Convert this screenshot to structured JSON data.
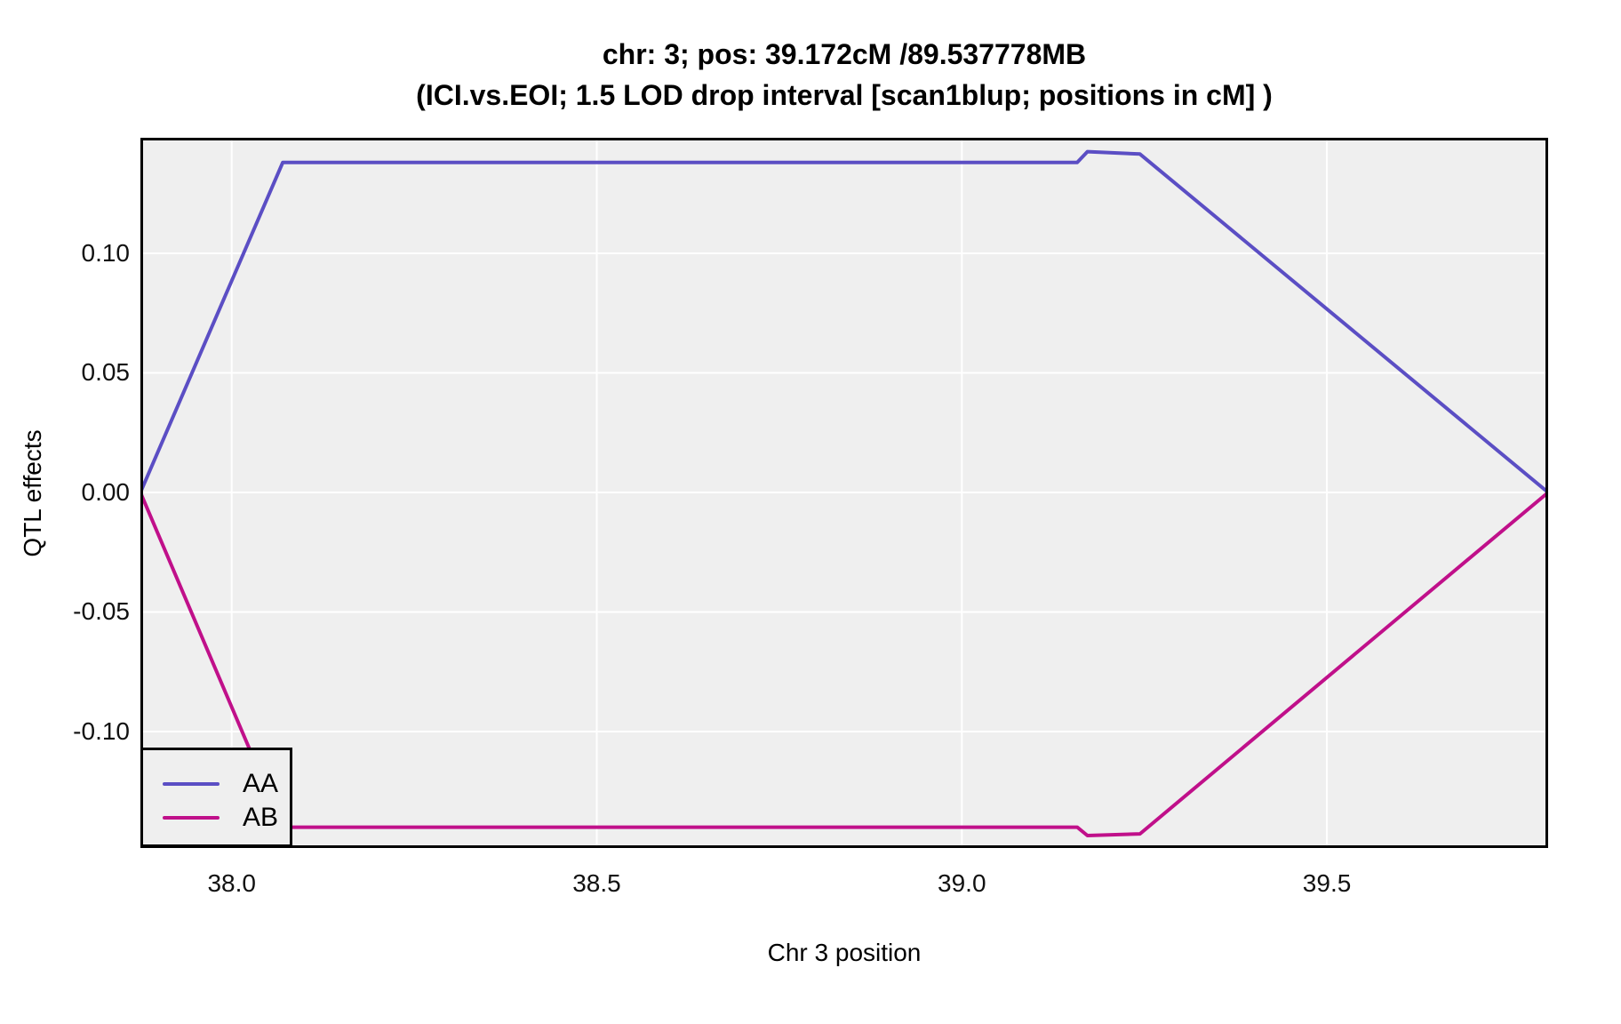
{
  "chart_data": {
    "type": "line",
    "title_lines": [
      "chr: 3; pos: 39.172cM /89.537778MB",
      "(ICI.vs.EOI; 1.5 LOD drop interval [scan1blup; positions in cM] )"
    ],
    "xlabel": "Chr 3 position",
    "ylabel": "QTL effects",
    "xlim": [
      37.875,
      39.803
    ],
    "ylim": [
      -0.1487,
      0.1483
    ],
    "x_ticks": [
      {
        "value": 38.0,
        "label": "38.0"
      },
      {
        "value": 38.5,
        "label": "38.5"
      },
      {
        "value": 39.0,
        "label": "39.0"
      },
      {
        "value": 39.5,
        "label": "39.5"
      }
    ],
    "y_ticks": [
      {
        "value": 0.1,
        "label": "0.10"
      },
      {
        "value": 0.05,
        "label": "0.05"
      },
      {
        "value": 0.0,
        "label": "0.00"
      },
      {
        "value": -0.05,
        "label": "-0.05"
      },
      {
        "value": -0.1,
        "label": "-0.10"
      }
    ],
    "grid": "major-only",
    "legend_position": "bottom-left",
    "peak": {
      "chr": "3",
      "pos_cM": 39.172,
      "pos_MB": 89.537778
    },
    "series": [
      {
        "name": "AA",
        "color": "#5B4EC4",
        "points": [
          [
            37.875,
            0.0
          ],
          [
            38.07,
            0.138
          ],
          [
            39.158,
            0.138
          ],
          [
            39.172,
            0.1425
          ],
          [
            39.244,
            0.1415
          ],
          [
            39.803,
            0.0
          ]
        ]
      },
      {
        "name": "AB",
        "color": "#C0108A",
        "points": [
          [
            37.875,
            0.0
          ],
          [
            38.07,
            -0.14
          ],
          [
            39.158,
            -0.14
          ],
          [
            39.172,
            -0.1435
          ],
          [
            39.244,
            -0.1428
          ],
          [
            39.803,
            0.0
          ]
        ]
      }
    ]
  },
  "style": {
    "panel_bg": "#EFEFEF",
    "grid_color": "#FFFFFF",
    "border_color": "#000000",
    "text_color": "#000000"
  }
}
